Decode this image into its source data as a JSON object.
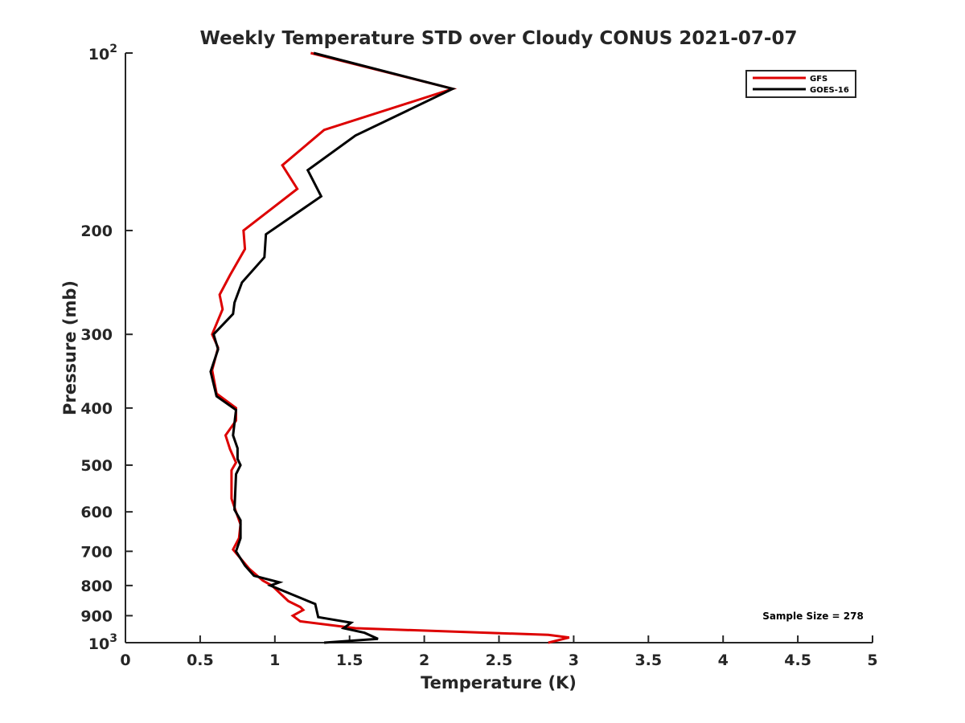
{
  "chart_data": {
    "type": "line",
    "title": "Weekly Temperature STD over Cloudy CONUS 2021-07-07",
    "xlabel": "Temperature (K)",
    "ylabel": "Pressure (mb)",
    "xlim": [
      0,
      5
    ],
    "ylim": [
      100,
      1000
    ],
    "yscale": "log",
    "yreversed": true,
    "grid": false,
    "legend_position": "top-right",
    "x_ticks": [
      {
        "value": 0,
        "label": "0"
      },
      {
        "value": 0.5,
        "label": "0.5"
      },
      {
        "value": 1,
        "label": "1"
      },
      {
        "value": 1.5,
        "label": "1.5"
      },
      {
        "value": 2,
        "label": "2"
      },
      {
        "value": 2.5,
        "label": "2.5"
      },
      {
        "value": 3,
        "label": "3"
      },
      {
        "value": 3.5,
        "label": "3.5"
      },
      {
        "value": 4,
        "label": "4"
      },
      {
        "value": 4.5,
        "label": "4.5"
      },
      {
        "value": 5,
        "label": "5"
      }
    ],
    "y_ticks": [
      {
        "value": 100,
        "label": "10",
        "sup": "2"
      },
      {
        "value": 200,
        "label": "200"
      },
      {
        "value": 300,
        "label": "300"
      },
      {
        "value": 400,
        "label": "400"
      },
      {
        "value": 500,
        "label": "500"
      },
      {
        "value": 600,
        "label": "600"
      },
      {
        "value": 700,
        "label": "700"
      },
      {
        "value": 800,
        "label": "800"
      },
      {
        "value": 900,
        "label": "900"
      },
      {
        "value": 1000,
        "label": "10",
        "sup": "3"
      }
    ],
    "annotation": "Sample Size = 278",
    "series": [
      {
        "name": "GFS",
        "color": "#dd0000",
        "points": [
          [
            1.24,
            100
          ],
          [
            2.19,
            115
          ],
          [
            1.33,
            135
          ],
          [
            1.05,
            155
          ],
          [
            1.15,
            170
          ],
          [
            0.79,
            200
          ],
          [
            0.8,
            215
          ],
          [
            0.7,
            238
          ],
          [
            0.63,
            257
          ],
          [
            0.65,
            272
          ],
          [
            0.58,
            300
          ],
          [
            0.62,
            316
          ],
          [
            0.58,
            345
          ],
          [
            0.61,
            378
          ],
          [
            0.74,
            400
          ],
          [
            0.74,
            420
          ],
          [
            0.67,
            445
          ],
          [
            0.7,
            470
          ],
          [
            0.74,
            495
          ],
          [
            0.71,
            510
          ],
          [
            0.71,
            570
          ],
          [
            0.74,
            600
          ],
          [
            0.77,
            630
          ],
          [
            0.76,
            665
          ],
          [
            0.72,
            695
          ],
          [
            0.83,
            750
          ],
          [
            0.92,
            785
          ],
          [
            0.98,
            800
          ],
          [
            1.09,
            850
          ],
          [
            1.17,
            870
          ],
          [
            1.19,
            880
          ],
          [
            1.12,
            900
          ],
          [
            1.17,
            920
          ],
          [
            1.54,
            945
          ],
          [
            2.83,
            970
          ],
          [
            2.97,
            980
          ],
          [
            2.83,
            1000
          ]
        ]
      },
      {
        "name": "GOES-16",
        "color": "#000000",
        "points": [
          [
            1.26,
            100
          ],
          [
            2.19,
            115
          ],
          [
            1.54,
            138
          ],
          [
            1.22,
            158
          ],
          [
            1.31,
            175
          ],
          [
            0.94,
            203
          ],
          [
            0.93,
            222
          ],
          [
            0.78,
            245
          ],
          [
            0.73,
            265
          ],
          [
            0.72,
            277
          ],
          [
            0.59,
            300
          ],
          [
            0.62,
            318
          ],
          [
            0.57,
            347
          ],
          [
            0.61,
            382
          ],
          [
            0.74,
            403
          ],
          [
            0.72,
            445
          ],
          [
            0.75,
            468
          ],
          [
            0.75,
            488
          ],
          [
            0.77,
            500
          ],
          [
            0.74,
            518
          ],
          [
            0.73,
            595
          ],
          [
            0.77,
            620
          ],
          [
            0.77,
            665
          ],
          [
            0.74,
            700
          ],
          [
            0.8,
            740
          ],
          [
            0.86,
            770
          ],
          [
            1.03,
            790
          ],
          [
            0.97,
            800
          ],
          [
            1.27,
            860
          ],
          [
            1.29,
            905
          ],
          [
            1.51,
            925
          ],
          [
            1.46,
            945
          ],
          [
            1.6,
            962
          ],
          [
            1.69,
            985
          ],
          [
            1.33,
            1000
          ]
        ]
      }
    ]
  }
}
